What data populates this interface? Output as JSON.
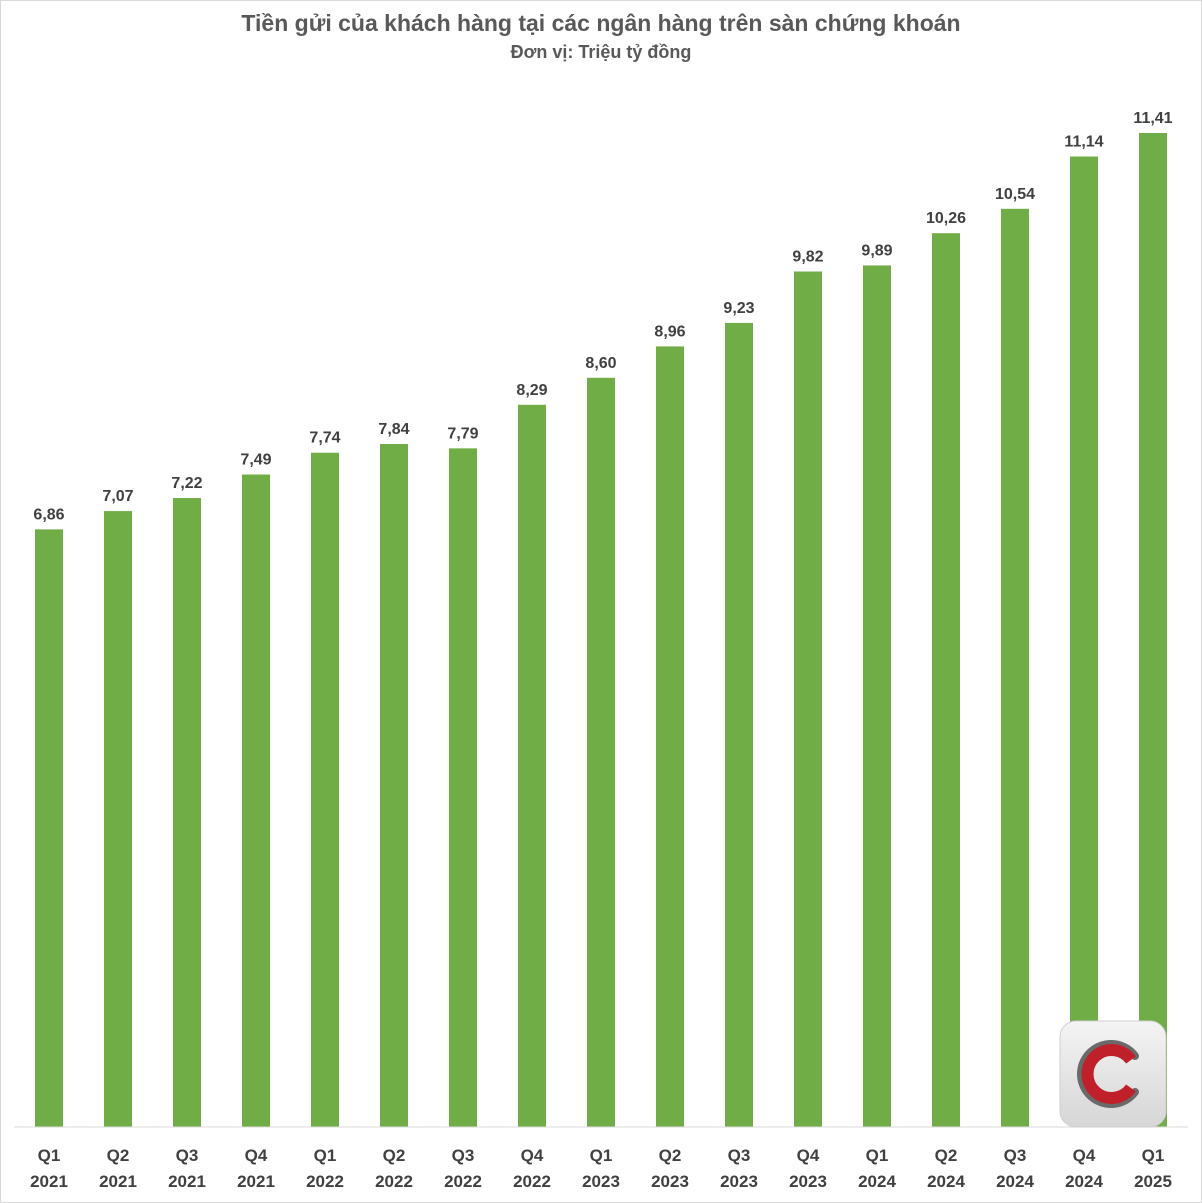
{
  "chart_data": {
    "type": "bar",
    "title": "Tiền gửi của khách hàng tại các ngân hàng trên sàn chứng khoán",
    "subtitle": "Đơn vị: Triệu tỷ đồng",
    "categories": [
      [
        "Q1",
        "2021"
      ],
      [
        "Q2",
        "2021"
      ],
      [
        "Q3",
        "2021"
      ],
      [
        "Q4",
        "2021"
      ],
      [
        "Q1",
        "2022"
      ],
      [
        "Q2",
        "2022"
      ],
      [
        "Q3",
        "2022"
      ],
      [
        "Q4",
        "2022"
      ],
      [
        "Q1",
        "2023"
      ],
      [
        "Q2",
        "2023"
      ],
      [
        "Q3",
        "2023"
      ],
      [
        "Q4",
        "2023"
      ],
      [
        "Q1",
        "2024"
      ],
      [
        "Q2",
        "2024"
      ],
      [
        "Q3",
        "2024"
      ],
      [
        "Q4",
        "2024"
      ],
      [
        "Q1",
        "2025"
      ]
    ],
    "values": [
      6.86,
      7.07,
      7.22,
      7.49,
      7.74,
      7.84,
      7.79,
      8.29,
      8.6,
      8.96,
      9.23,
      9.82,
      9.89,
      10.26,
      10.54,
      11.14,
      11.41
    ],
    "data_labels": [
      "6,86",
      "7,07",
      "7,22",
      "7,49",
      "7,74",
      "7,84",
      "7,79",
      "8,29",
      "8,60",
      "8,96",
      "9,23",
      "9,82",
      "9,89",
      "10,26",
      "10,54",
      "11,14",
      "11,41"
    ],
    "ylim": [
      0,
      11.41
    ],
    "grid": false,
    "legend": "none",
    "bar_color": "#70ad47",
    "label_color": "#404040",
    "axis_color": "#d9d9d9"
  },
  "logo": {
    "icon": "cafef-c-logo-icon",
    "colors": [
      "#c0202a",
      "#5a5a5a",
      "#e6e6e6"
    ]
  }
}
